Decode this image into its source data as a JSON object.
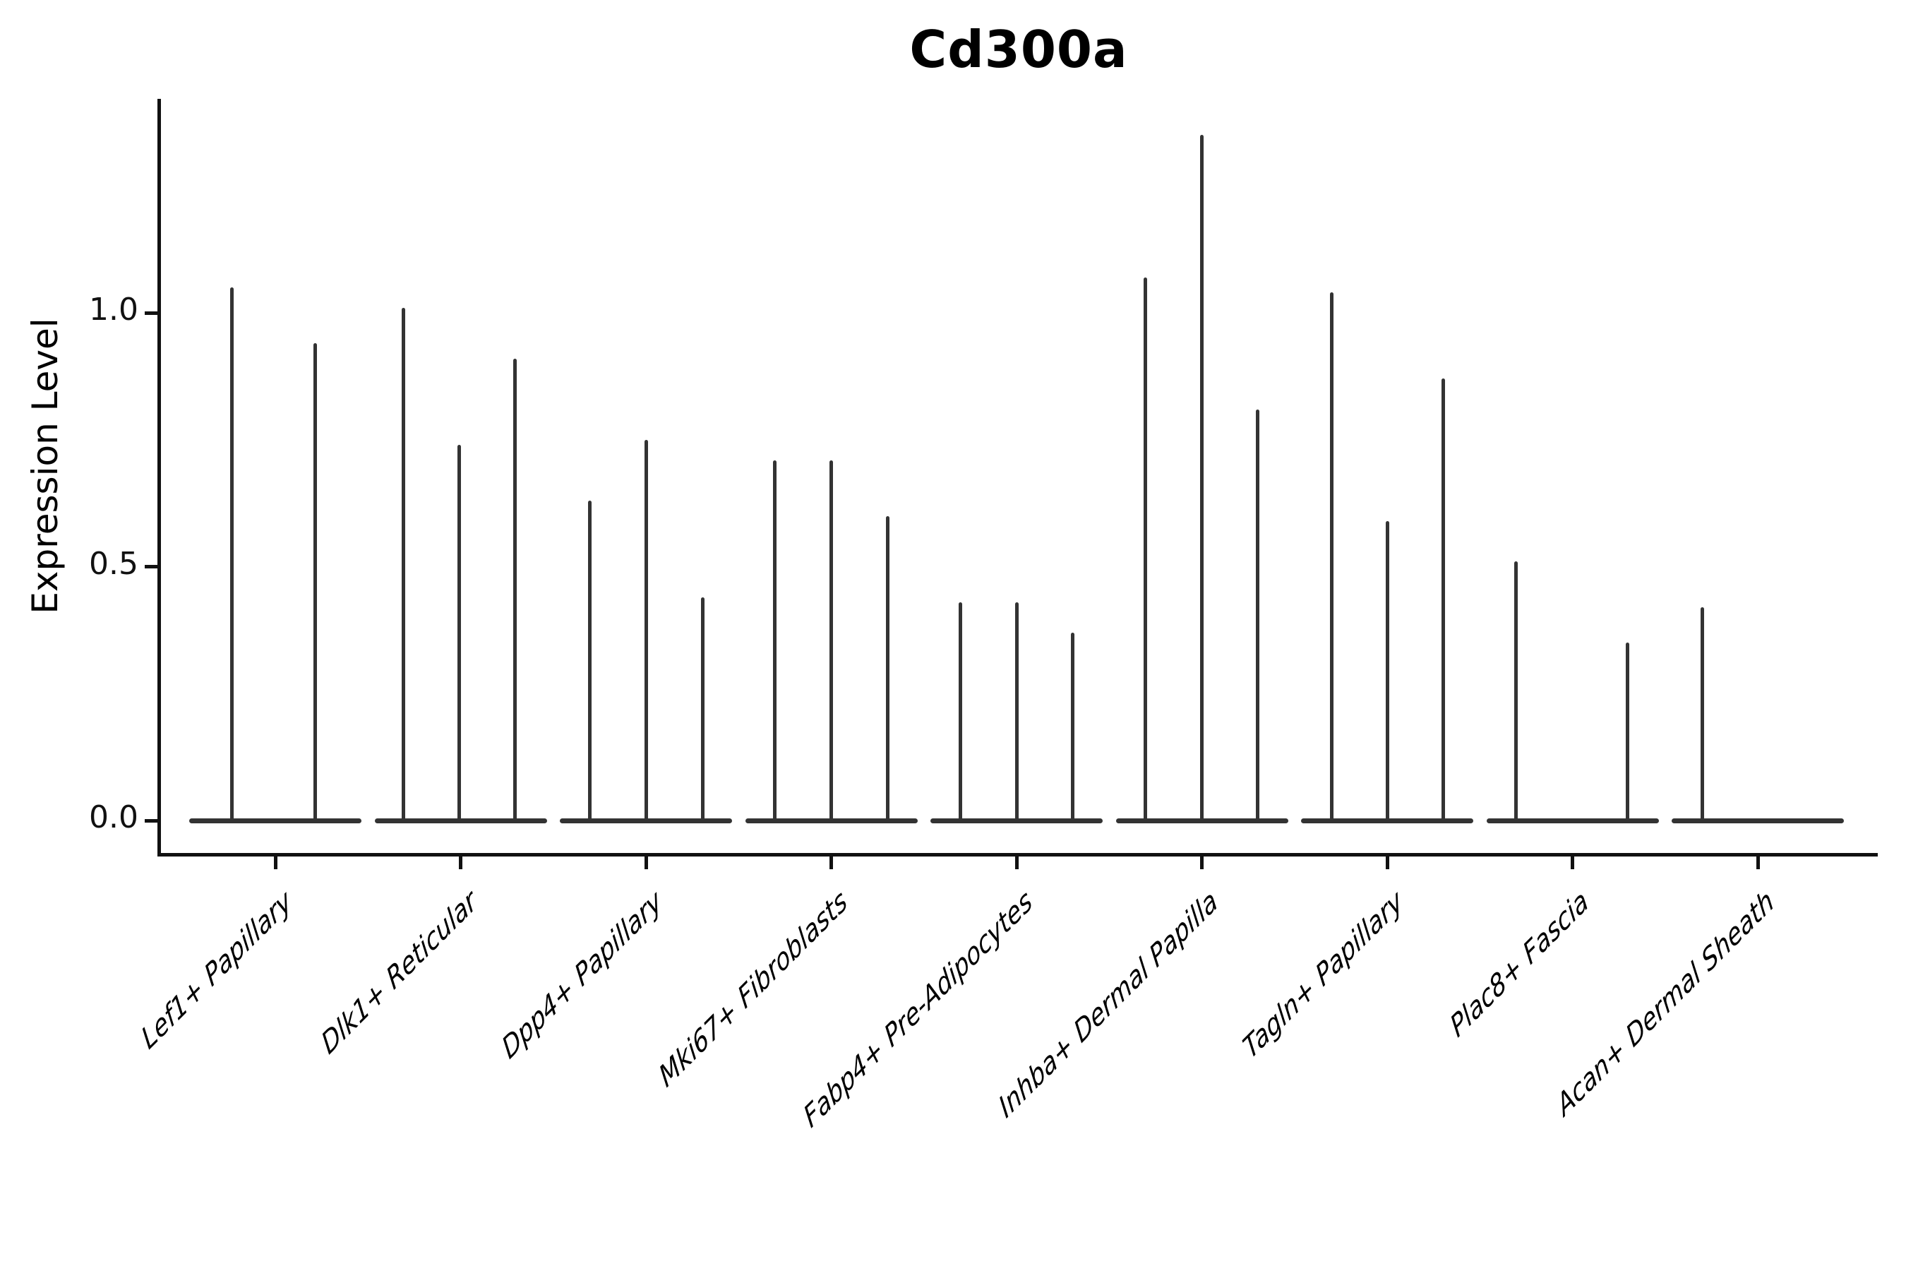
{
  "figure": {
    "background": "#ffffff"
  },
  "chart_data": {
    "type": "violin",
    "title": "Cd300a",
    "xlabel": "",
    "ylabel": "Expression Level",
    "ylim": [
      0,
      1.42
    ],
    "yticks": [
      {
        "label": "0.0",
        "value": 0.0
      },
      {
        "label": "0.5",
        "value": 0.5
      },
      {
        "label": "1.0",
        "value": 1.0
      }
    ],
    "grid": false,
    "legend": "none",
    "description": "Needle-shaped violin plot of Cd300a expression; each cluster shows up to 3 thin violins whose flat bases sit at 0 and whose needles reach the max expression value.",
    "categories": [
      "Lef1+ Papillary",
      "Dlk1+ Reticular",
      "Dpp4+ Papillary",
      "Mki67+ Fibroblasts",
      "Fabp4+ Pre-Adipocytes",
      "Inhba+ Dermal Papilla",
      "Tagln+ Papillary",
      "Plac8+ Fascia",
      "Acan+ Dermal Sheath"
    ],
    "groups": [
      {
        "label": "Lef1+ Papillary",
        "violins": [
          {
            "dx": -62,
            "max": 1.05
          },
          {
            "dx": 56,
            "max": 0.94
          }
        ]
      },
      {
        "label": "Dlk1+ Reticular",
        "violins": [
          {
            "dx": -81,
            "max": 1.01
          },
          {
            "dx": -2,
            "max": 0.74
          },
          {
            "dx": 77,
            "max": 0.91
          }
        ]
      },
      {
        "label": "Dpp4+ Papillary",
        "violins": [
          {
            "dx": -80,
            "max": 0.63
          },
          {
            "dx": 0,
            "max": 0.75
          },
          {
            "dx": 80,
            "max": 0.44
          }
        ]
      },
      {
        "label": "Mki67+ Fibroblasts",
        "violins": [
          {
            "dx": -80,
            "max": 0.71
          },
          {
            "dx": 0,
            "max": 0.71
          },
          {
            "dx": 80,
            "max": 0.6
          }
        ]
      },
      {
        "label": "Fabp4+ Pre-Adipocytes",
        "violins": [
          {
            "dx": -80,
            "max": 0.43
          },
          {
            "dx": 0,
            "max": 0.43
          },
          {
            "dx": 79,
            "max": 0.37
          }
        ]
      },
      {
        "label": "Inhba+ Dermal Papilla",
        "violins": [
          {
            "dx": -80,
            "max": 1.07
          },
          {
            "dx": 0,
            "max": 1.35
          },
          {
            "dx": 79,
            "max": 0.81
          }
        ]
      },
      {
        "label": "Tagln+ Papillary",
        "violins": [
          {
            "dx": -79,
            "max": 1.04
          },
          {
            "dx": 0,
            "max": 0.59
          },
          {
            "dx": 79,
            "max": 0.87
          }
        ]
      },
      {
        "label": "Plac8+ Fascia",
        "violins": [
          {
            "dx": -80,
            "max": 0.51
          },
          {
            "dx": 78,
            "max": 0.35
          }
        ]
      },
      {
        "label": "Acan+ Dermal Sheath",
        "violins": [
          {
            "dx": -79,
            "max": 0.42
          }
        ]
      }
    ]
  },
  "colors": {
    "violin": "#333333",
    "axis": "#111111",
    "text": "#000000",
    "background": "#ffffff"
  }
}
